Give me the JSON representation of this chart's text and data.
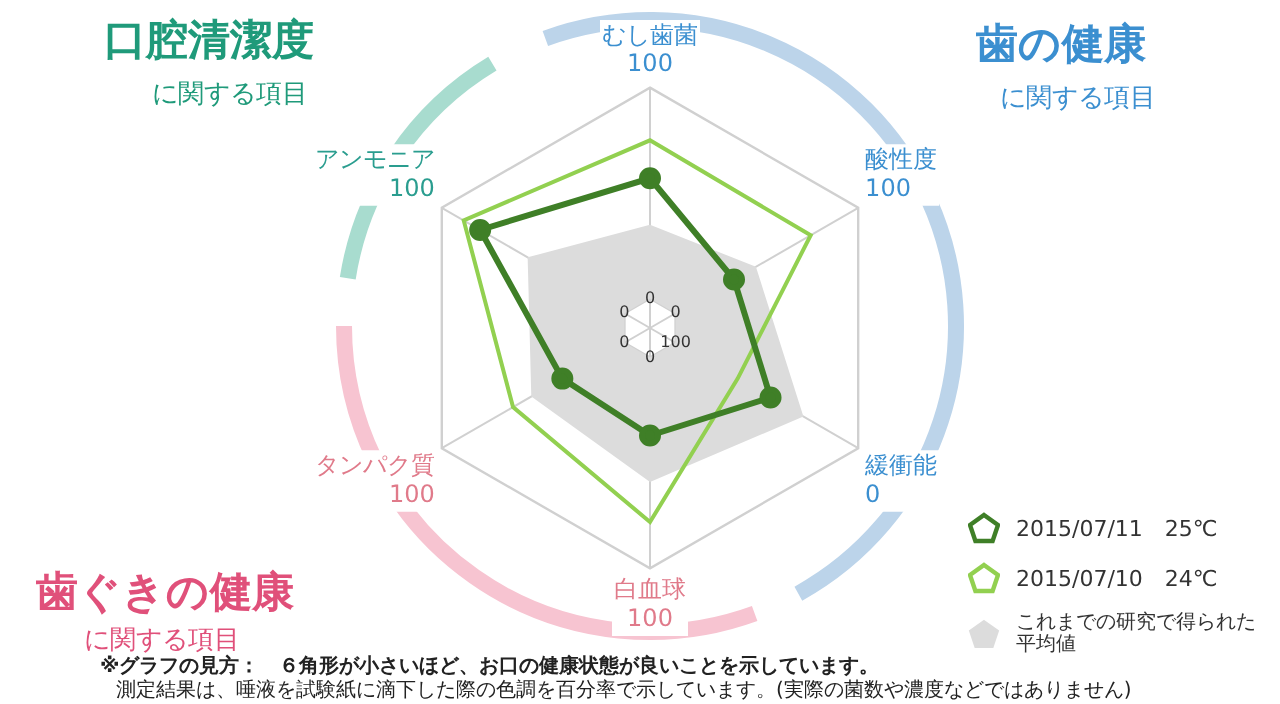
{
  "chart_data": {
    "type": "radar",
    "categories": [
      "むし歯菌",
      "酸性度",
      "緩衝能",
      "白血球",
      "タンパク質",
      "アンモニア"
    ],
    "series": [
      {
        "name": "2015/07/11　25℃",
        "color": "#3f7f27",
        "marker": "circle",
        "values": [
          57,
          32,
          52,
          37,
          34,
          79
        ]
      },
      {
        "name": "2015/07/10　24℃",
        "color": "#92d050",
        "marker": "none",
        "values": [
          75,
          74,
          34,
          78,
          61,
          88
        ]
      },
      {
        "name": "これまでの研究で得られた平均値",
        "color": "#dcdcdc",
        "type": "area",
        "marker": "none",
        "values": [
          35,
          44,
          70,
          59,
          51,
          53
        ]
      }
    ],
    "ylim": [
      -14,
      100
    ],
    "yticks": [
      0,
      100
    ],
    "grid": true,
    "legend": "bottom right",
    "annotations": [
      "口腔清潔度",
      "に関する項目",
      "歯の健康",
      "に関する項目",
      "歯ぐきの健康",
      "に関する項目",
      "※グラフの見方：　６角形が小さいほど、お口の健康状態が良いことを示しています。",
      "測定結果は、唾液を試験紙に滴下した際の色調を百分率で示しています。(実際の菌数や濃度などではありません)",
      {
        "text": "0",
        "x": "緩衝能"
      },
      {
        "text": "100",
        "x": "緩衝能"
      }
    ]
  }
}
